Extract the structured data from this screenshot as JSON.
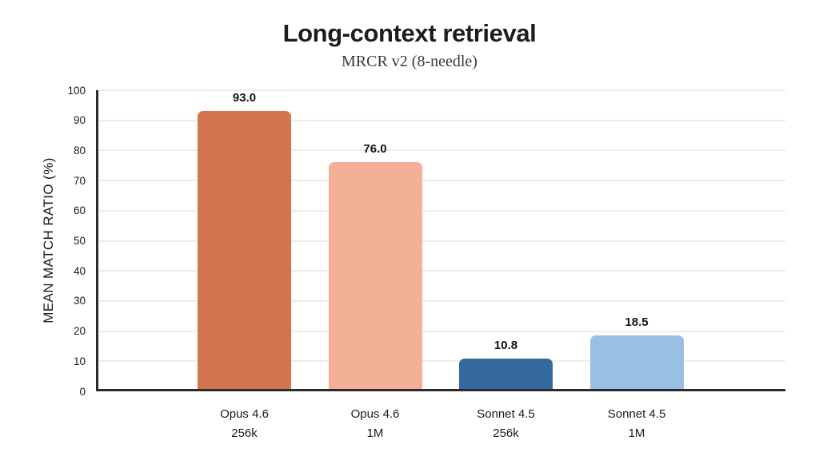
{
  "chart_data": {
    "type": "bar",
    "title": "Long-context retrieval",
    "subtitle": "MRCR v2 (8-needle)",
    "xlabel": "",
    "ylabel": "MEAN MATCH RATIO (%)",
    "ylim": [
      0,
      100
    ],
    "ytick_step": 10,
    "grid": true,
    "legend": "none",
    "categories": [
      {
        "line1": "Opus 4.6",
        "line2": "256k"
      },
      {
        "line1": "Opus 4.6",
        "line2": "1M"
      },
      {
        "line1": "Sonnet 4.5",
        "line2": "256k"
      },
      {
        "line1": "Sonnet 4.5",
        "line2": "1M"
      }
    ],
    "values": [
      93.0,
      76.0,
      10.8,
      18.5
    ],
    "value_labels": [
      "93.0",
      "76.0",
      "10.8",
      "18.5"
    ],
    "bar_colors": [
      "#D37650",
      "#F3B097",
      "#346AA0",
      "#9ABFE5"
    ],
    "axis_color": "#2B2B2B",
    "grid_color": "#F0EDE7",
    "text_color": "#1A1A1A",
    "background_color": "#FFFFFF"
  }
}
